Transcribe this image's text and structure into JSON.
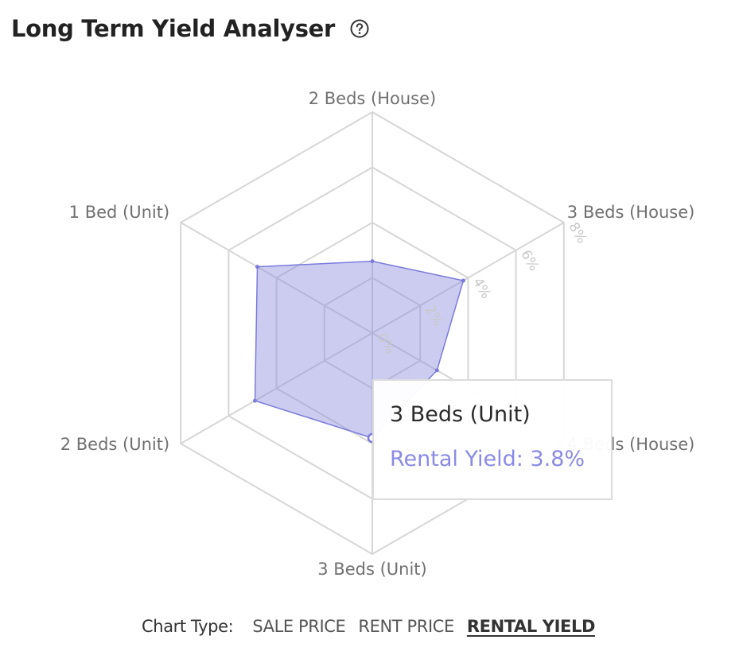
{
  "header": {
    "title": "Long Term Yield Analyser"
  },
  "icons": {
    "help": "help-circle-icon"
  },
  "colors": {
    "fill": "#8f8fe0",
    "fill_opacity": 0.45,
    "stroke": "#7b7bdb",
    "grid": "#d6d6d6",
    "axis_label": "#707070",
    "tick_label": "#c8c8c8",
    "tooltip_value": "#8a8ae6"
  },
  "chart_data": {
    "type": "radar",
    "title": "Long Term Yield Analyser",
    "axes": [
      "2 Beds (House)",
      "3 Beds (House)",
      "4 Beds (House)",
      "3 Beds (Unit)",
      "2 Beds (Unit)",
      "1 Bed (Unit)"
    ],
    "series": [
      {
        "values": [
          2.6,
          3.8,
          2.7,
          3.8,
          4.9,
          4.8
        ]
      }
    ],
    "range": [
      0,
      8
    ],
    "ticks": [
      {
        "value": 0,
        "label": "0%"
      },
      {
        "value": 2,
        "label": "2%"
      },
      {
        "value": 4,
        "label": "4%"
      },
      {
        "value": 6,
        "label": "6%"
      },
      {
        "value": 8,
        "label": "8%"
      }
    ],
    "grid": true
  },
  "tooltip": {
    "title": "3 Beds (Unit)",
    "label": "Rental Yield",
    "value": "3.8%",
    "text": "Rental Yield: 3.8%"
  },
  "controls": {
    "label": "Chart Type:",
    "options": [
      "SALE PRICE",
      "RENT PRICE",
      "RENTAL YIELD"
    ],
    "selected": "RENTAL YIELD"
  }
}
